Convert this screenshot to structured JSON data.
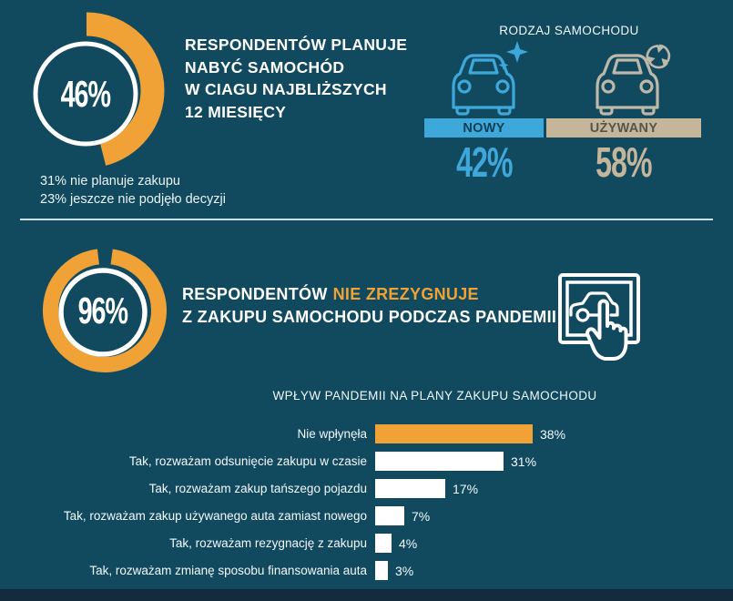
{
  "colors": {
    "background": "#114A5F",
    "accent_orange": "#F0A236",
    "accent_blue": "#3FA8DB",
    "accent_tan": "#C5B59B",
    "footer_band": "#132B3D"
  },
  "section1": {
    "percent_label": "46%",
    "title_lines": [
      "RESPONDENTÓW PLANUJE",
      "NABYĆ SAMOCHÓD",
      "W CIAGU NAJBLIŻSZYCH",
      "12 MIESIĘCY"
    ],
    "notes": [
      "31% nie planuje zakupu",
      "23% jeszcze nie podjęło decyzji"
    ],
    "car_type": {
      "heading": "RODZAJ SAMOCHODU",
      "new_label": "NOWY",
      "new_value": "42%",
      "used_label": "UŻYWANY",
      "used_value": "58%",
      "icons": [
        "new-car-sparkle-icon",
        "used-car-recycle-icon"
      ]
    }
  },
  "section2": {
    "percent_label": "96%",
    "title_part1": "RESPONDENTÓW",
    "title_highlight": "NIE ZREZYGNUJE",
    "title_line2": "Z ZAKUPU SAMOCHODU PODCZAS PANDEMII",
    "icon": "tap-screen-car-icon"
  },
  "chart_data": [
    {
      "type": "donut",
      "label": "plany nabycia samochodu w ciągu 12 miesięcy",
      "center_label": "46%",
      "ring_color": "#F0A236",
      "segments": [
        {
          "label": "planuje nabyć samochód",
          "value": 46
        },
        {
          "label": "nie planuje zakupu",
          "value": 31
        },
        {
          "label": "jeszcze nie podjęło decyzji",
          "value": 23
        }
      ]
    },
    {
      "type": "bar",
      "title": "RODZAJ SAMOCHODU",
      "categories": [
        "NOWY",
        "UŻYWANY"
      ],
      "values": [
        42,
        58
      ],
      "colors": [
        "#3FA8DB",
        "#C5B59B"
      ]
    },
    {
      "type": "donut",
      "label": "nie zrezygnuje z zakupu samochodu podczas pandemii",
      "center_label": "96%",
      "ring_color": "#F0A236",
      "segments": [
        {
          "label": "nie zrezygnuje",
          "value": 96
        },
        {
          "label": "zrezygnuje",
          "value": 4
        }
      ]
    },
    {
      "type": "bar",
      "orientation": "horizontal",
      "title": "WPŁYW PANDEMII NA PLANY ZAKUPU SAMOCHODU",
      "categories": [
        "Nie wpłynęła",
        "Tak, rozważam odsunięcie zakupu w czasie",
        "Tak, rozważam zakup tańszego pojazdu",
        "Tak, rozważam zakup używanego auta zamiast nowego",
        "Tak, rozważam rezygnację z zakupu",
        "Tak, rozważam zmianę sposobu finansowania auta"
      ],
      "values": [
        38,
        31,
        17,
        7,
        4,
        3
      ],
      "value_labels": [
        "38%",
        "31%",
        "17%",
        "7%",
        "4%",
        "3%"
      ],
      "bar_colors": [
        "#F0A236",
        "#FFFFFF",
        "#FFFFFF",
        "#FFFFFF",
        "#FFFFFF",
        "#FFFFFF"
      ],
      "xlim": [
        0,
        40
      ],
      "grid": false,
      "legend": "none"
    }
  ]
}
